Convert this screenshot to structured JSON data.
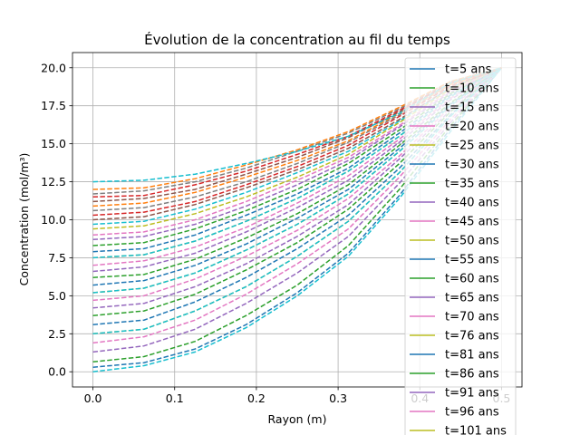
{
  "chart_data": {
    "type": "line",
    "title": "Évolution de la concentration au fil du temps",
    "xlabel": "Rayon (m)",
    "ylabel": "Concentration (mol/m³)",
    "xlim": [
      -0.025,
      0.525
    ],
    "ylim": [
      -1.0,
      21.0
    ],
    "xticks": [
      0.0,
      0.1,
      0.2,
      0.3,
      0.4,
      0.5
    ],
    "xtick_labels": [
      "0.0",
      "0.1",
      "0.2",
      "0.3",
      "0.4",
      "0.5"
    ],
    "yticks": [
      0.0,
      2.5,
      5.0,
      7.5,
      10.0,
      12.5,
      15.0,
      17.5,
      20.0
    ],
    "ytick_labels": [
      "0.0",
      "2.5",
      "5.0",
      "7.5",
      "10.0",
      "12.5",
      "15.0",
      "17.5",
      "20.0"
    ],
    "grid": true,
    "legend_position": "top-right",
    "x": [
      0.0,
      0.0625,
      0.125,
      0.1875,
      0.25,
      0.3125,
      0.375,
      0.4375,
      0.5
    ],
    "line_style": "dashed",
    "series": [
      {
        "name": "t=5 ans",
        "color": "#1f77b4",
        "values": [
          0.3,
          0.6,
          1.5,
          3.1,
          5.2,
          7.8,
          11.6,
          16.0,
          20.0
        ]
      },
      {
        "name": "t=10 ans",
        "color": "#2ca02c",
        "values": [
          0.65,
          1.0,
          2.0,
          3.7,
          5.7,
          8.3,
          12.0,
          16.2,
          20.0
        ]
      },
      {
        "name": "t=15 ans",
        "color": "#9467bd",
        "values": [
          1.3,
          1.7,
          2.8,
          4.5,
          6.5,
          8.9,
          12.4,
          16.4,
          20.0
        ]
      },
      {
        "name": "t=20 ans",
        "color": "#e377c2",
        "values": [
          1.9,
          2.3,
          3.4,
          5.1,
          7.1,
          9.4,
          12.8,
          16.6,
          20.0
        ]
      },
      {
        "name": "t=25 ans",
        "color": "#bcbd22",
        "values": [
          2.5,
          2.8,
          4.0,
          5.6,
          7.6,
          9.9,
          13.1,
          16.8,
          20.0
        ]
      },
      {
        "name": "t=30 ans",
        "color": "#1f77b4",
        "values": [
          3.1,
          3.4,
          4.6,
          6.2,
          8.1,
          10.3,
          13.4,
          16.9,
          20.0
        ]
      },
      {
        "name": "t=35 ans",
        "color": "#2ca02c",
        "values": [
          3.7,
          4.0,
          5.1,
          6.7,
          8.5,
          10.7,
          13.7,
          17.1,
          20.0
        ]
      },
      {
        "name": "t=40 ans",
        "color": "#9467bd",
        "values": [
          4.2,
          4.5,
          5.6,
          7.1,
          8.9,
          11.0,
          14.0,
          17.2,
          20.0
        ]
      },
      {
        "name": "t=45 ans",
        "color": "#e377c2",
        "values": [
          4.7,
          5.0,
          6.1,
          7.6,
          9.3,
          11.4,
          14.2,
          17.4,
          20.0
        ]
      },
      {
        "name": "t=50 ans",
        "color": "#bcbd22",
        "values": [
          5.2,
          5.5,
          6.5,
          8.0,
          9.7,
          11.7,
          14.5,
          17.5,
          20.0
        ]
      },
      {
        "name": "t=55 ans",
        "color": "#1f77b4",
        "values": [
          5.7,
          6.0,
          7.0,
          8.4,
          10.1,
          12.0,
          14.7,
          17.6,
          20.0
        ]
      },
      {
        "name": "t=60 ans",
        "color": "#2ca02c",
        "values": [
          6.2,
          6.4,
          7.4,
          8.8,
          10.4,
          12.3,
          14.9,
          17.7,
          20.0
        ]
      },
      {
        "name": "t=65 ans",
        "color": "#9467bd",
        "values": [
          6.6,
          6.9,
          7.8,
          9.2,
          10.8,
          12.6,
          15.1,
          17.9,
          20.0
        ]
      },
      {
        "name": "t=70 ans",
        "color": "#e377c2",
        "values": [
          7.0,
          7.3,
          8.2,
          9.5,
          11.1,
          12.9,
          15.3,
          18.0,
          20.0
        ]
      },
      {
        "name": "t=76 ans",
        "color": "#bcbd22",
        "values": [
          7.5,
          7.7,
          8.6,
          9.9,
          11.4,
          13.2,
          15.5,
          18.1,
          20.0
        ]
      },
      {
        "name": "t=81 ans",
        "color": "#1f77b4",
        "values": [
          7.9,
          8.1,
          9.0,
          10.3,
          11.7,
          13.4,
          15.7,
          18.2,
          20.0
        ]
      },
      {
        "name": "t=86 ans",
        "color": "#2ca02c",
        "values": [
          8.3,
          8.5,
          9.4,
          10.6,
          12.0,
          13.7,
          15.9,
          18.3,
          20.0
        ]
      },
      {
        "name": "t=91 ans",
        "color": "#9467bd",
        "values": [
          8.7,
          8.9,
          9.7,
          10.9,
          12.3,
          13.9,
          16.1,
          18.4,
          20.0
        ]
      },
      {
        "name": "t=96 ans",
        "color": "#e377c2",
        "values": [
          9.0,
          9.2,
          10.0,
          11.2,
          12.6,
          14.1,
          16.2,
          18.5,
          20.0
        ]
      },
      {
        "name": "t=101 ans",
        "color": "#bcbd22",
        "values": [
          9.4,
          9.6,
          10.4,
          11.5,
          12.8,
          14.3,
          16.4,
          18.6,
          20.0
        ]
      },
      {
        "color": "#17becf",
        "values": [
          0.0,
          0.4,
          1.3,
          2.9,
          5.0,
          7.6,
          11.4,
          15.8,
          20.0
        ]
      },
      {
        "color": "#17becf",
        "values": [
          2.5,
          2.8,
          4.0,
          5.6,
          7.6,
          9.9,
          13.1,
          16.8,
          20.0
        ]
      },
      {
        "color": "#17becf",
        "values": [
          5.2,
          5.5,
          6.5,
          8.0,
          9.7,
          11.7,
          14.5,
          17.5,
          20.0
        ]
      },
      {
        "color": "#17becf",
        "values": [
          7.5,
          7.7,
          8.6,
          9.9,
          11.4,
          13.2,
          15.5,
          18.1,
          20.0
        ]
      },
      {
        "color": "#17becf",
        "values": [
          9.7,
          9.9,
          10.7,
          11.8,
          13.1,
          14.5,
          16.5,
          18.7,
          20.0
        ]
      },
      {
        "color": "#8c564b",
        "values": [
          10.0,
          10.2,
          11.0,
          12.1,
          13.3,
          14.7,
          16.6,
          18.7,
          20.0
        ]
      },
      {
        "color": "#d62728",
        "values": [
          10.3,
          10.5,
          11.2,
          12.3,
          13.5,
          14.9,
          16.8,
          18.8,
          20.0
        ]
      },
      {
        "color": "#7f7f7f",
        "values": [
          10.6,
          10.8,
          11.5,
          12.5,
          13.7,
          15.1,
          16.9,
          18.9,
          20.0
        ]
      },
      {
        "color": "#ff7f0e",
        "values": [
          10.9,
          11.1,
          11.8,
          12.8,
          13.9,
          15.2,
          17.0,
          18.9,
          20.0
        ]
      },
      {
        "color": "#8c564b",
        "values": [
          11.2,
          11.4,
          12.0,
          13.0,
          14.1,
          15.4,
          17.1,
          19.0,
          20.0
        ]
      },
      {
        "color": "#d62728",
        "values": [
          11.5,
          11.6,
          12.3,
          13.2,
          14.3,
          15.5,
          17.2,
          19.0,
          20.0
        ]
      },
      {
        "color": "#7f7f7f",
        "values": [
          11.7,
          11.9,
          12.5,
          13.4,
          14.5,
          15.7,
          17.3,
          19.1,
          20.0
        ]
      },
      {
        "color": "#ff7f0e",
        "values": [
          12.0,
          12.1,
          12.7,
          13.6,
          14.6,
          15.8,
          17.4,
          19.1,
          20.0
        ]
      },
      {
        "color": "#17becf",
        "values": [
          12.5,
          12.6,
          13.0,
          13.7,
          14.5,
          15.5,
          17.0,
          19.0,
          20.0
        ]
      }
    ]
  }
}
